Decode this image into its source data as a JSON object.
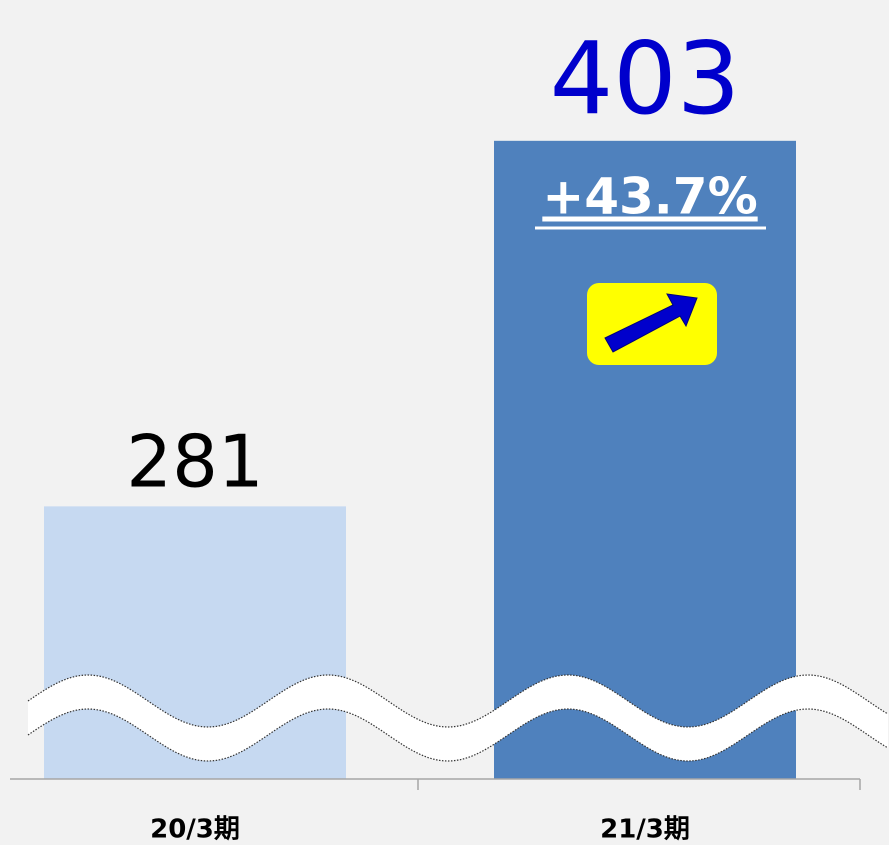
{
  "chart_data": {
    "type": "bar",
    "categories": [
      "20/3期",
      "21/3期"
    ],
    "values": [
      281,
      403
    ],
    "colors": [
      "#c6d9f1",
      "#4f81bd"
    ],
    "value_label_colors": [
      "#000000",
      "#0000cc"
    ],
    "annotation": "+43.7%",
    "ylim": [
      190,
      450
    ]
  }
}
